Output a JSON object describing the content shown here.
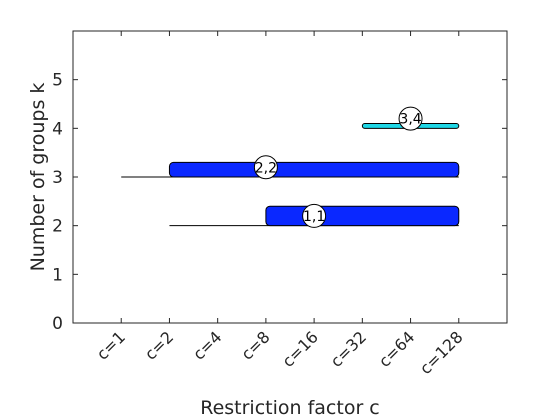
{
  "chart_data": {
    "type": "bar",
    "xlabel": "Restriction factor c",
    "ylabel": "Number of groups k",
    "categories": [
      "c=1",
      "c=2",
      "c=4",
      "c=8",
      "c=16",
      "c=32",
      "c=64",
      "c=128"
    ],
    "yticks": [
      "0",
      "1",
      "2",
      "3",
      "4",
      "5"
    ],
    "xlim": [
      0,
      9
    ],
    "ylim": [
      0,
      6
    ],
    "grid": false,
    "lines": [
      {
        "k": 2,
        "from": "c=2",
        "to": "c=128"
      },
      {
        "k": 3,
        "from": "c=1",
        "to": "c=128"
      }
    ],
    "bars": [
      {
        "k": 2,
        "from": "c=8",
        "to": "c=128",
        "height": 0.4,
        "color": "#0a28ff"
      },
      {
        "k": 3,
        "from": "c=2",
        "to": "c=128",
        "height": 0.3,
        "color": "#0a28ff"
      },
      {
        "k": 4,
        "from": "c=32",
        "to": "c=128",
        "height": 0.1,
        "color": "#1ed7e6"
      }
    ],
    "labels": [
      {
        "text": "1,1",
        "c": "c=16",
        "k": 2.2
      },
      {
        "text": "2,2",
        "c": "c=8",
        "k": 3.2
      },
      {
        "text": "3,4",
        "c": "c=64",
        "k": 4.2
      }
    ]
  }
}
